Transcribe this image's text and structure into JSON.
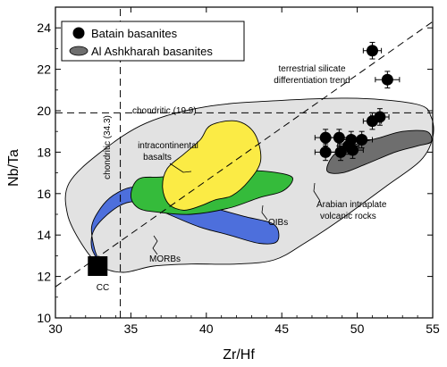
{
  "chart_data": {
    "type": "scatter",
    "xlabel": "Zr/Hf",
    "ylabel": "Nb/Ta",
    "xlim": [
      30,
      55
    ],
    "ylim": [
      10,
      25
    ],
    "xticks": [
      30,
      35,
      40,
      45,
      50,
      55
    ],
    "yticks": [
      10,
      12,
      14,
      16,
      18,
      20,
      22,
      24
    ],
    "grid": false,
    "legend_position": "top-left",
    "legend": [
      {
        "label": "Batain basanites",
        "marker": "circle",
        "color": "#000000"
      },
      {
        "label": "Al Ashkharah basanites",
        "marker": "ellipse",
        "color": "#6e6e6e"
      }
    ],
    "series": [
      {
        "name": "Batain basanites",
        "points": [
          {
            "x": 51.0,
            "y": 22.9,
            "xerr": 0.6,
            "yerr": 0.4
          },
          {
            "x": 52.0,
            "y": 21.5,
            "xerr": 0.8,
            "yerr": 0.4
          },
          {
            "x": 51.0,
            "y": 19.5,
            "xerr": 0.6,
            "yerr": 0.4
          },
          {
            "x": 51.5,
            "y": 19.7,
            "xerr": 0.6,
            "yerr": 0.4
          },
          {
            "x": 47.9,
            "y": 18.7,
            "xerr": 0.7,
            "yerr": 0.4
          },
          {
            "x": 48.8,
            "y": 18.7,
            "xerr": 0.7,
            "yerr": 0.4
          },
          {
            "x": 49.6,
            "y": 18.6,
            "xerr": 0.7,
            "yerr": 0.4
          },
          {
            "x": 50.3,
            "y": 18.6,
            "xerr": 0.7,
            "yerr": 0.4
          },
          {
            "x": 49.4,
            "y": 18.3,
            "xerr": 0.7,
            "yerr": 0.4
          },
          {
            "x": 47.9,
            "y": 18.0,
            "xerr": 0.7,
            "yerr": 0.4
          },
          {
            "x": 48.9,
            "y": 18.0,
            "xerr": 0.7,
            "yerr": 0.4
          },
          {
            "x": 49.7,
            "y": 18.1,
            "xerr": 0.7,
            "yerr": 0.4
          }
        ]
      }
    ],
    "reference_lines": [
      {
        "type": "horizontal",
        "y": 19.9,
        "label": "chondritic (19.9)"
      },
      {
        "type": "vertical",
        "x": 34.3,
        "label": "chondritic (34.3)"
      },
      {
        "type": "trend",
        "points": [
          [
            30,
            11.5
          ],
          [
            55,
            24.3
          ]
        ],
        "label": "terrestrial silicate differentiation trend"
      }
    ],
    "fields": [
      {
        "name": "Arabian intraplate volcanic rocks",
        "color": "#e2e2e2",
        "polygon": [
          [
            33.0,
            12.5
          ],
          [
            31.8,
            13.5
          ],
          [
            30.8,
            15.0
          ],
          [
            30.9,
            16.5
          ],
          [
            33.0,
            18.0
          ],
          [
            36.0,
            19.4
          ],
          [
            40.0,
            20.2
          ],
          [
            45.0,
            20.5
          ],
          [
            50.0,
            20.6
          ],
          [
            54.0,
            20.3
          ],
          [
            54.9,
            19.7
          ],
          [
            55.0,
            18.7
          ],
          [
            54.2,
            17.6
          ],
          [
            52.0,
            16.4
          ],
          [
            49.0,
            14.8
          ],
          [
            46.5,
            13.6
          ],
          [
            44.5,
            12.8
          ],
          [
            42.0,
            12.6
          ],
          [
            39.0,
            12.6
          ],
          [
            36.5,
            12.5
          ],
          [
            34.5,
            12.2
          ],
          [
            33.0,
            12.5
          ]
        ]
      },
      {
        "name": "MORBs",
        "color": "#4d6fdc",
        "polygon": [
          [
            33.0,
            12.6
          ],
          [
            32.4,
            13.4
          ],
          [
            32.6,
            14.3
          ],
          [
            33.8,
            15.2
          ],
          [
            35.0,
            15.6
          ],
          [
            36.2,
            15.4
          ],
          [
            37.5,
            15.0
          ],
          [
            39.5,
            14.4
          ],
          [
            41.5,
            14.0
          ],
          [
            43.5,
            13.6
          ],
          [
            44.7,
            13.7
          ],
          [
            44.5,
            14.5
          ],
          [
            42.5,
            14.9
          ],
          [
            40.5,
            15.3
          ],
          [
            38.5,
            15.7
          ],
          [
            37.2,
            16.1
          ],
          [
            36.2,
            16.2
          ],
          [
            35.0,
            16.3
          ],
          [
            33.8,
            15.9
          ],
          [
            33.0,
            15.3
          ],
          [
            32.4,
            14.4
          ],
          [
            32.6,
            13.3
          ],
          [
            33.0,
            12.6
          ]
        ]
      },
      {
        "name": "OIBs",
        "color": "#35bb3b",
        "polygon": [
          [
            35.0,
            15.9
          ],
          [
            35.5,
            15.3
          ],
          [
            36.8,
            15.1
          ],
          [
            39.0,
            15.0
          ],
          [
            41.5,
            15.3
          ],
          [
            43.5,
            15.8
          ],
          [
            45.0,
            16.1
          ],
          [
            45.7,
            16.6
          ],
          [
            45.4,
            16.9
          ],
          [
            43.5,
            17.1
          ],
          [
            41.5,
            17.0
          ],
          [
            39.0,
            16.9
          ],
          [
            37.0,
            16.8
          ],
          [
            35.5,
            16.7
          ],
          [
            35.0,
            15.9
          ]
        ]
      },
      {
        "name": "intracontinental basalts",
        "color": "#fbeb45",
        "polygon": [
          [
            37.1,
            16.3
          ],
          [
            37.5,
            15.5
          ],
          [
            38.5,
            15.2
          ],
          [
            39.6,
            15.4
          ],
          [
            40.6,
            15.7
          ],
          [
            41.7,
            15.9
          ],
          [
            42.8,
            16.6
          ],
          [
            43.6,
            17.6
          ],
          [
            43.2,
            18.9
          ],
          [
            42.0,
            19.5
          ],
          [
            40.3,
            19.3
          ],
          [
            39.6,
            18.6
          ],
          [
            38.5,
            17.9
          ],
          [
            37.4,
            17.2
          ],
          [
            37.1,
            16.3
          ]
        ]
      },
      {
        "name": "Al Ashkharah basanites",
        "color": "#6e6e6e",
        "polygon": [
          [
            48.0,
            17.1
          ],
          [
            49.0,
            17.0
          ],
          [
            50.5,
            17.4
          ],
          [
            52.5,
            18.0
          ],
          [
            54.0,
            18.3
          ],
          [
            54.9,
            18.5
          ],
          [
            54.6,
            19.0
          ],
          [
            53.0,
            19.0
          ],
          [
            51.5,
            18.7
          ],
          [
            50.0,
            18.4
          ],
          [
            48.5,
            17.9
          ],
          [
            48.0,
            17.1
          ]
        ]
      }
    ],
    "special_points": [
      {
        "label": "CC",
        "x": 32.8,
        "y": 12.5,
        "marker": "square"
      }
    ],
    "annotations": [
      {
        "text": "terrestrial silicate"
      },
      {
        "text": "differentiation trend"
      },
      {
        "text": "intracontinental"
      },
      {
        "text": "basalts"
      },
      {
        "text": "OIBs"
      },
      {
        "text": "MORBs"
      },
      {
        "text": "CC"
      },
      {
        "text": "Arabian intraplate"
      },
      {
        "text": "volcanic rocks"
      },
      {
        "text": "chondritic (19.9)"
      },
      {
        "text": "chondritic (34.3)"
      }
    ]
  }
}
